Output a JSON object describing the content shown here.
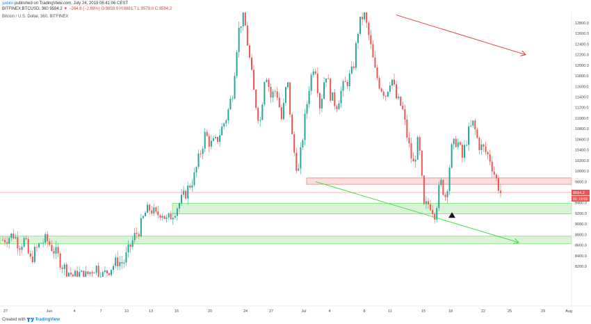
{
  "header": {
    "author": "yabiru",
    "published_text": "published on TradingView.com, July 24, 2019 06:41:06 CEST",
    "ohlc_prefix": "BITFINEX:BTCUSD, 360",
    "last_price": "9594.2",
    "change": "▼ −264.8 (−2.69%)",
    "ohlc": "O:9859.0 H:9881.7 L:9579.0 C:9594.2",
    "pane_title": "Bitcoin / U.S. Dollar, 360, BITFINEX"
  },
  "footer": {
    "created_with": "Created with",
    "brand": "TradingView"
  },
  "colors": {
    "up": "#26a69a",
    "down": "#ef5350",
    "zone_red": "#f4b6b3",
    "zone_green": "#a8e6a1",
    "line_red": "#e53935",
    "line_green": "#33dd33"
  },
  "chart_data": {
    "type": "candlestick",
    "symbol": "BITFINEX:BTCUSD",
    "interval": "360",
    "ylim": [
      8000,
      13000
    ],
    "y_ticks": [
      "12800.0",
      "12600.0",
      "12400.0",
      "12200.0",
      "12000.0",
      "11800.0",
      "11600.0",
      "11400.0",
      "11200.0",
      "11000.0",
      "10800.0",
      "10600.0",
      "10400.0",
      "10200.0",
      "10000.0",
      "9800.0",
      "9600.0",
      "9400.0",
      "9200.0",
      "9000.0",
      "8800.0",
      "8600.0",
      "8400.0",
      "8200.0"
    ],
    "x_ticks": [
      "27",
      "Jun",
      "4",
      "7",
      "10",
      "13",
      "16",
      "20",
      "24",
      "27",
      "Jul",
      "4",
      "8",
      "11",
      "15",
      "18",
      "22",
      "25",
      "29",
      "Aug"
    ],
    "price_label": "9594.2",
    "countdown_label": "01:18:55",
    "series": {
      "close_path": [
        8700,
        8750,
        8800,
        8600,
        8700,
        8300,
        8500,
        8650,
        8700,
        8550,
        8400,
        8200,
        8100,
        8000,
        8050,
        8000,
        8100,
        8200,
        8000,
        8100,
        8200,
        8300,
        8250,
        8500,
        8750,
        8900,
        9200,
        9300,
        9150,
        9250,
        9050,
        9200,
        9350,
        9500,
        9700,
        9900,
        10300,
        10700,
        10500,
        10550,
        10800,
        11050,
        11500,
        12600,
        13000,
        12200,
        11400,
        10900,
        11950,
        11400,
        11550,
        10950,
        11750,
        10500,
        9950,
        10800,
        11600,
        12100,
        11200,
        11900,
        11400,
        11250,
        11550,
        11700,
        11900,
        12700,
        13000,
        12500,
        11900,
        11600,
        11450,
        11800,
        11350,
        11200,
        10600,
        10100,
        10600,
        9300,
        9400,
        9200,
        9800,
        9500,
        10400,
        10600,
        10250,
        10700,
        10900,
        10500,
        10400,
        10250,
        9900,
        9594
      ]
    },
    "zones": [
      {
        "color": "red",
        "low": 9750,
        "high": 9870
      },
      {
        "color": "green",
        "low": 9190,
        "high": 9390
      },
      {
        "color": "green",
        "low": 8630,
        "high": 8770
      }
    ],
    "trendlines": [
      {
        "color": "red",
        "from": {
          "x": "Jul 10",
          "y": 12950
        },
        "to": {
          "x": "Jul 27",
          "y": 12200
        },
        "arrow": true
      },
      {
        "color": "green",
        "from": {
          "x": "Jul 2",
          "y": 9800
        },
        "to": {
          "x": "Jul 26",
          "y": 8650
        },
        "arrow": true
      }
    ],
    "marker": {
      "type": "triangle-up",
      "x": "Jul 18",
      "y": 9170
    },
    "horizontal_line": {
      "y": 9594.2,
      "color": "red"
    }
  }
}
